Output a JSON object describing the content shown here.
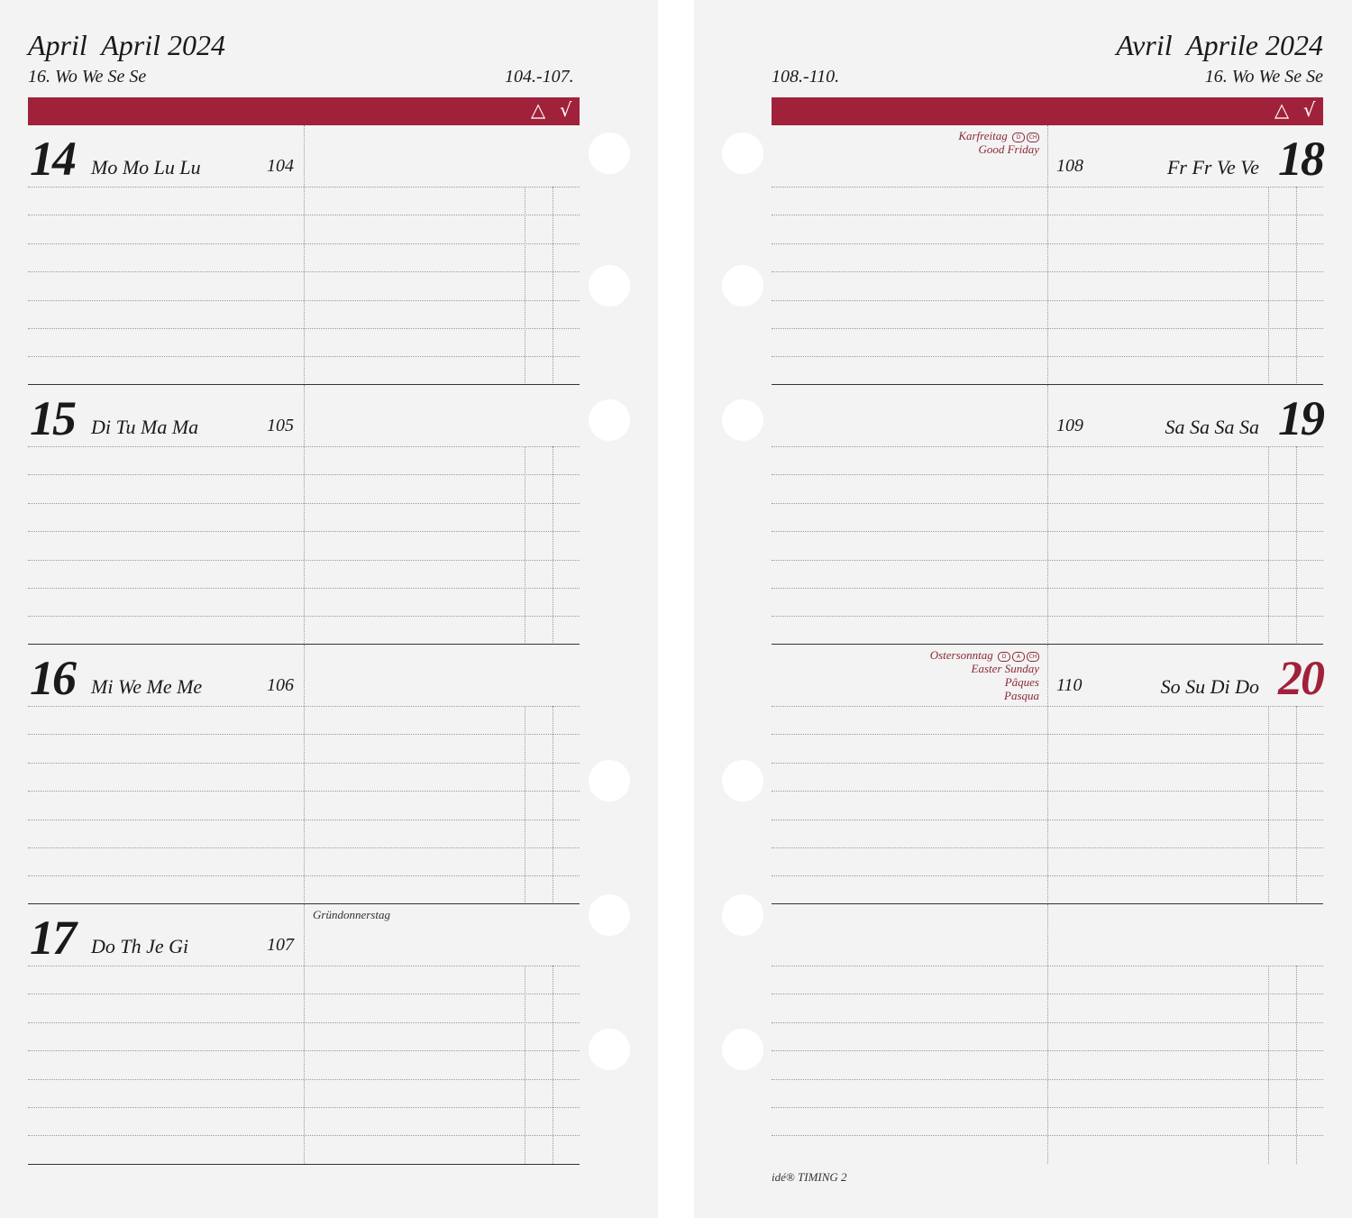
{
  "left_page": {
    "month_title": "April  April 2024",
    "week_label": "16. Wo We Se Se",
    "day_range": "104.-107.",
    "bar_symbols": {
      "triangle": "△",
      "check": "√"
    },
    "days": [
      {
        "number": "14",
        "names": "Mo Mo Lu Lu",
        "day_of_year": "104",
        "note": ""
      },
      {
        "number": "15",
        "names": "Di Tu Ma Ma",
        "day_of_year": "105",
        "note": ""
      },
      {
        "number": "16",
        "names": "Mi We Me Me",
        "day_of_year": "106",
        "note": ""
      },
      {
        "number": "17",
        "names": "Do Th Je Gi",
        "day_of_year": "107",
        "note": "Gründonnerstag"
      }
    ]
  },
  "right_page": {
    "month_title": "Avril  Aprile 2024",
    "week_label": "16. Wo We Se Se",
    "day_range": "108.-110.",
    "bar_symbols": {
      "triangle": "△",
      "check": "√"
    },
    "days": [
      {
        "number": "18",
        "names": "Fr Fr Ve Ve",
        "day_of_year": "108",
        "holiday_lines": [
          "Karfreitag",
          "Good Friday"
        ],
        "badges": [
          "D",
          "CH"
        ]
      },
      {
        "number": "19",
        "names": "Sa Sa Sa Sa",
        "day_of_year": "109",
        "holiday_lines": [],
        "badges": []
      },
      {
        "number": "20",
        "names": "So Su Di Do",
        "day_of_year": "110",
        "holiday_lines": [
          "Ostersonntag",
          "Easter Sunday",
          "Pâques",
          "Pasqua"
        ],
        "badges": [
          "D",
          "A",
          "CH"
        ]
      }
    ],
    "footer": "idé® TIMING 2"
  },
  "colors": {
    "accent": "#a0223a",
    "paper": "#f3f3f3"
  }
}
